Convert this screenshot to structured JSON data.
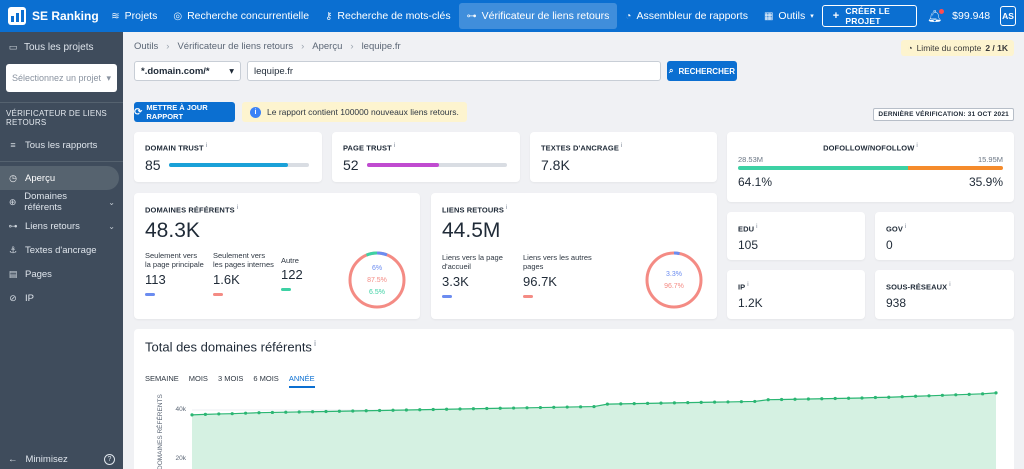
{
  "brand": {
    "name": "SE Ranking"
  },
  "nav": [
    {
      "label": "Projets",
      "icon": "layers-icon"
    },
    {
      "label": "Recherche concurrentielle",
      "icon": "target-icon"
    },
    {
      "label": "Recherche de mots-clés",
      "icon": "key-icon"
    },
    {
      "label": "Vérificateur de liens retours",
      "icon": "link-icon"
    },
    {
      "label": "Assembleur de rapports",
      "icon": "pie-icon"
    },
    {
      "label": "Outils",
      "icon": "grid-icon"
    }
  ],
  "topbar": {
    "create_label": "CRÉER LE PROJET",
    "balance": "$99.948",
    "avatar": "AS"
  },
  "sidebar": {
    "all_projects": "Tous les projets",
    "select_placeholder": "Sélectionnez un projet",
    "section": "VÉRIFICATEUR DE LIENS RETOURS",
    "items": [
      {
        "label": "Tous les rapports"
      },
      {
        "label": "Aperçu"
      },
      {
        "label": "Domaines référents"
      },
      {
        "label": "Liens retours"
      },
      {
        "label": "Textes d'ancrage"
      },
      {
        "label": "Pages"
      },
      {
        "label": "IP"
      }
    ],
    "minimize": "Minimisez",
    "help": "?"
  },
  "breadcrumb": [
    "Outils",
    "Vérificateur de liens retours",
    "Aperçu",
    "lequipe.fr"
  ],
  "limit": {
    "label": "Limite du compte",
    "value": "2 / 1K"
  },
  "filter": {
    "mode": "*.domain.com/*",
    "url": "lequipe.fr",
    "search_label": "RECHERCHER"
  },
  "update_label": "METTRE À JOUR RAPPORT",
  "notice": "Le rapport contient 100000 nouveaux liens retours.",
  "last_check": "DERNIÈRE VÉRIFICATION: 31 OCT 2021",
  "metrics": {
    "domain_trust": {
      "label": "DOMAIN TRUST",
      "value": "85",
      "level": 0.85,
      "color": "#1aa1d8"
    },
    "page_trust": {
      "label": "PAGE TRUST",
      "value": "52",
      "level": 0.52,
      "color": "#c04bd0"
    },
    "anchors": {
      "label": "TEXTES D'ANCRAGE",
      "value": "7.8K"
    },
    "dofollow": {
      "label": "DOFOLLOW/NOFOLLOW",
      "left_count": "28.53M",
      "right_count": "15.95M",
      "left_pct": "64.1%",
      "right_pct": "35.9%",
      "split": 0.641,
      "left_color": "#3dd1a4",
      "right_color": "#f58b2b"
    },
    "ref_domains": {
      "label": "DOMAINES RÉFÉRENTS",
      "value": "48.3K",
      "subs": [
        {
          "label": "Seulement vers la page principale",
          "value": "113",
          "color": "#6b8cf0"
        },
        {
          "label": "Seulement vers les pages internes",
          "value": "1.6K",
          "color": "#f48b84"
        },
        {
          "label": "Autre",
          "value": "122",
          "color": "#3dd1a4"
        }
      ],
      "pcts": [
        "6%",
        "87.5%",
        "6.5%"
      ]
    },
    "backlinks": {
      "label": "LIENS RETOURS",
      "value": "44.5M",
      "subs": [
        {
          "label": "Liens vers la page d'accueil",
          "value": "3.3K",
          "color": "#6b8cf0"
        },
        {
          "label": "Liens vers les autres pages",
          "value": "96.7K",
          "color": "#f48b84"
        }
      ],
      "pcts": [
        "3.3%",
        "96.7%"
      ]
    },
    "edu": {
      "label": "EDU",
      "value": "105"
    },
    "gov": {
      "label": "GOV",
      "value": "0"
    },
    "ip": {
      "label": "IP",
      "value": "1.2K"
    },
    "subnets": {
      "label": "SOUS-RÉSEAUX",
      "value": "938"
    }
  },
  "chart_title": "Total des domaines référents",
  "periods": [
    "SEMAINE",
    "MOIS",
    "3 MOIS",
    "6 MOIS",
    "ANNÉE"
  ],
  "active_period": "ANNÉE",
  "chart_data": {
    "type": "area",
    "ylabel": "DOMAINES RÉFÉRENTS",
    "yticks": [
      "40k",
      "20k"
    ],
    "ylim": [
      0,
      60000
    ],
    "values": [
      38000,
      38200,
      38400,
      38500,
      38700,
      38900,
      39000,
      39100,
      39200,
      39300,
      39400,
      39500,
      39600,
      39700,
      39800,
      39900,
      40000,
      40100,
      40200,
      40300,
      40400,
      40500,
      40600,
      40700,
      40800,
      40900,
      41000,
      41100,
      41200,
      41300,
      41400,
      42400,
      42500,
      42600,
      42700,
      42800,
      42900,
      43000,
      43100,
      43200,
      43300,
      43400,
      43500,
      44200,
      44300,
      44400,
      44500,
      44600,
      44700,
      44800,
      44900,
      45100,
      45200,
      45400,
      45600,
      45800,
      46000,
      46200,
      46400,
      46600,
      47000
    ]
  },
  "colors": {
    "brand": "#0b6fd1",
    "sidebar": "#3f4c5c",
    "area": "#d5f1e2",
    "line": "#2bb673"
  }
}
